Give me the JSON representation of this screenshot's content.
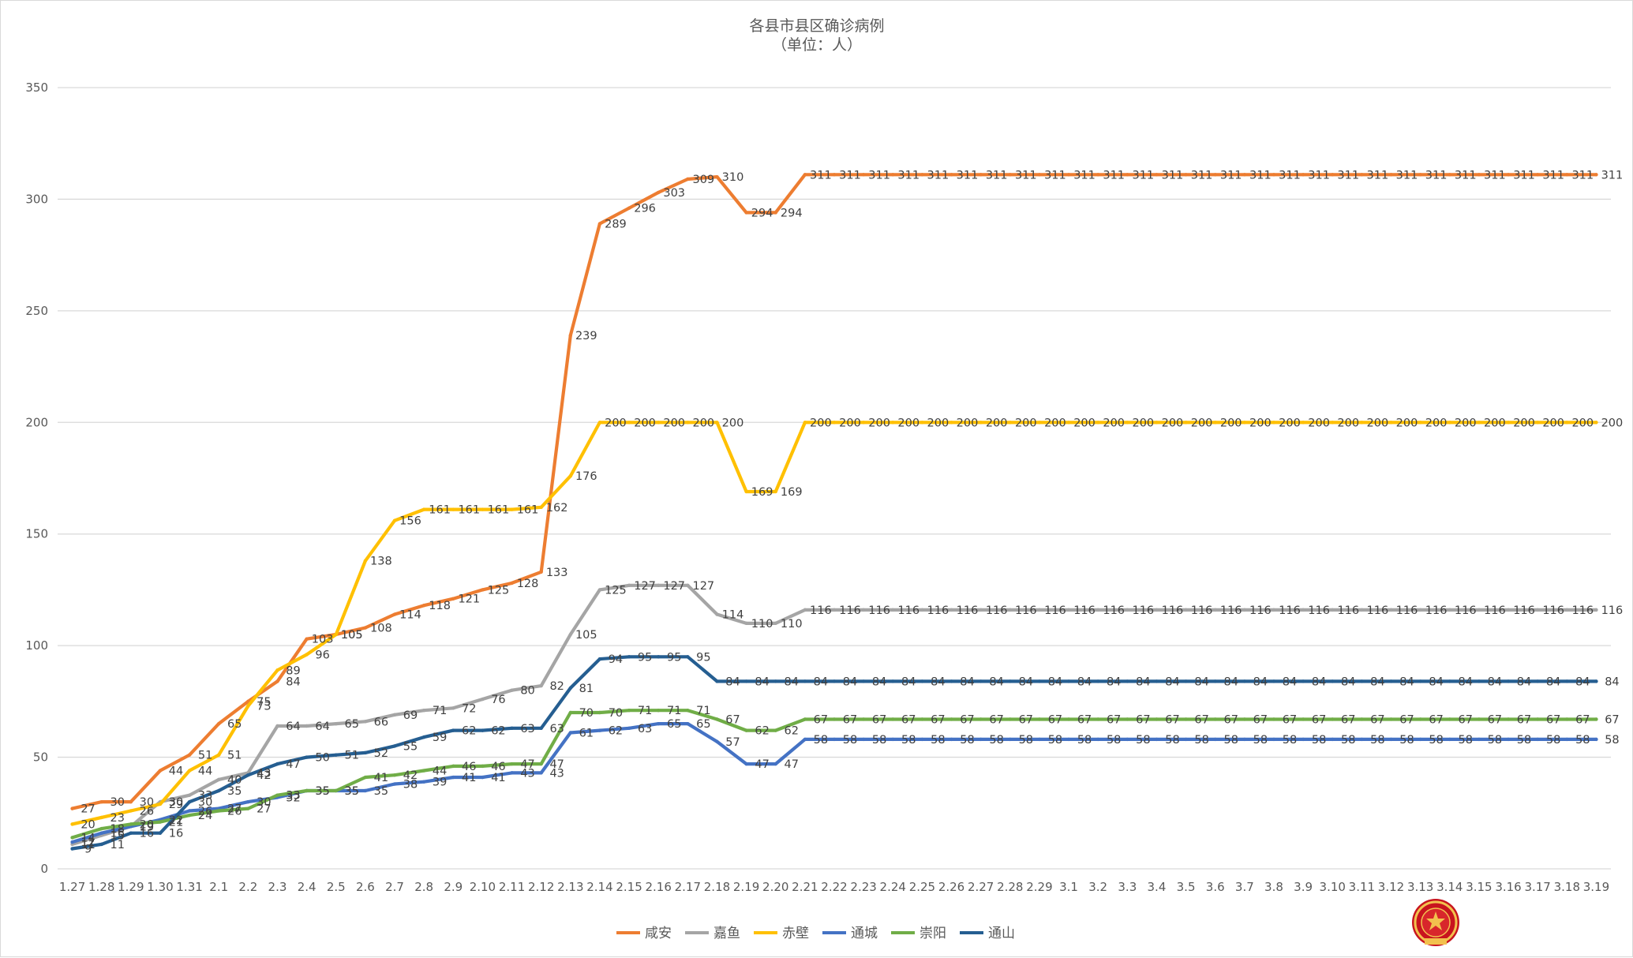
{
  "chart_data": {
    "type": "line",
    "title": "各县市县区确诊病例",
    "subtitle": "（单位：人）",
    "xlabel": "",
    "ylabel": "",
    "ylim": [
      0,
      350
    ],
    "yticks": [
      0,
      50,
      100,
      150,
      200,
      250,
      300,
      350
    ],
    "grid": true,
    "legend_position": "bottom",
    "categories": [
      "1.27",
      "1.28",
      "1.29",
      "1.30",
      "1.31",
      "2.1",
      "2.2",
      "2.3",
      "2.4",
      "2.5",
      "2.6",
      "2.7",
      "2.8",
      "2.9",
      "2.10",
      "2.11",
      "2.12",
      "2.13",
      "2.14",
      "2.15",
      "2.16",
      "2.17",
      "2.18",
      "2.19",
      "2.20",
      "2.21",
      "2.22",
      "2.23",
      "2.24",
      "2.25",
      "2.26",
      "2.27",
      "2.28",
      "2.29",
      "3.1",
      "3.2",
      "3.3",
      "3.4",
      "3.5",
      "3.6",
      "3.7",
      "3.8",
      "3.9",
      "3.10",
      "3.11",
      "3.12",
      "3.13",
      "3.14",
      "3.15",
      "3.16",
      "3.17",
      "3.18",
      "3.19"
    ],
    "series": [
      {
        "name": "咸安",
        "color": "#ED7D31",
        "values": [
          27,
          30,
          30,
          44,
          51,
          65,
          75,
          84,
          103,
          105,
          108,
          114,
          118,
          121,
          125,
          128,
          133,
          239,
          289,
          296,
          303,
          309,
          310,
          294,
          294,
          311,
          311,
          311,
          311,
          311,
          311,
          311,
          311,
          311,
          311,
          311,
          311,
          311,
          311,
          311,
          311,
          311,
          311,
          311,
          311,
          311,
          311,
          311,
          311,
          311,
          311,
          311,
          311
        ]
      },
      {
        "name": "嘉鱼",
        "color": "#A5A5A5",
        "values": [
          11,
          15,
          19,
          30,
          33,
          40,
          43,
          64,
          64,
          65,
          66,
          69,
          71,
          72,
          76,
          80,
          82,
          105,
          125,
          127,
          127,
          127,
          114,
          110,
          110,
          116,
          116,
          116,
          116,
          116,
          116,
          116,
          116,
          116,
          116,
          116,
          116,
          116,
          116,
          116,
          116,
          116,
          116,
          116,
          116,
          116,
          116,
          116,
          116,
          116,
          116,
          116,
          116
        ]
      },
      {
        "name": "赤壁",
        "color": "#FFC000",
        "values": [
          20,
          23,
          26,
          29,
          44,
          51,
          73,
          89,
          96,
          105,
          138,
          156,
          161,
          161,
          161,
          161,
          162,
          176,
          200,
          200,
          200,
          200,
          200,
          169,
          169,
          200,
          200,
          200,
          200,
          200,
          200,
          200,
          200,
          200,
          200,
          200,
          200,
          200,
          200,
          200,
          200,
          200,
          200,
          200,
          200,
          200,
          200,
          200,
          200,
          200,
          200,
          200,
          200
        ]
      },
      {
        "name": "通城",
        "color": "#4472C4",
        "values": [
          12,
          16,
          19,
          22,
          26,
          27,
          30,
          32,
          35,
          35,
          35,
          38,
          39,
          41,
          41,
          43,
          43,
          61,
          62,
          63,
          65,
          65,
          57,
          47,
          47,
          58,
          58,
          58,
          58,
          58,
          58,
          58,
          58,
          58,
          58,
          58,
          58,
          58,
          58,
          58,
          58,
          58,
          58,
          58,
          58,
          58,
          58,
          58,
          58,
          58,
          58,
          58,
          58
        ]
      },
      {
        "name": "崇阳",
        "color": "#70AD47",
        "values": [
          14,
          18,
          20,
          21,
          24,
          26,
          27,
          33,
          35,
          35,
          41,
          42,
          44,
          46,
          46,
          47,
          47,
          70,
          70,
          71,
          71,
          71,
          67,
          62,
          62,
          67,
          67,
          67,
          67,
          67,
          67,
          67,
          67,
          67,
          67,
          67,
          67,
          67,
          67,
          67,
          67,
          67,
          67,
          67,
          67,
          67,
          67,
          67,
          67,
          67,
          67,
          67,
          67
        ]
      },
      {
        "name": "通山",
        "color": "#255E91",
        "values": [
          9,
          11,
          16,
          16,
          30,
          35,
          42,
          47,
          50,
          51,
          52,
          55,
          59,
          62,
          62,
          63,
          63,
          81,
          94,
          95,
          95,
          95,
          84,
          84,
          84,
          84,
          84,
          84,
          84,
          84,
          84,
          84,
          84,
          84,
          84,
          84,
          84,
          84,
          84,
          84,
          84,
          84,
          84,
          84,
          84,
          84,
          84,
          84,
          84,
          84,
          84,
          84,
          84
        ]
      }
    ]
  }
}
